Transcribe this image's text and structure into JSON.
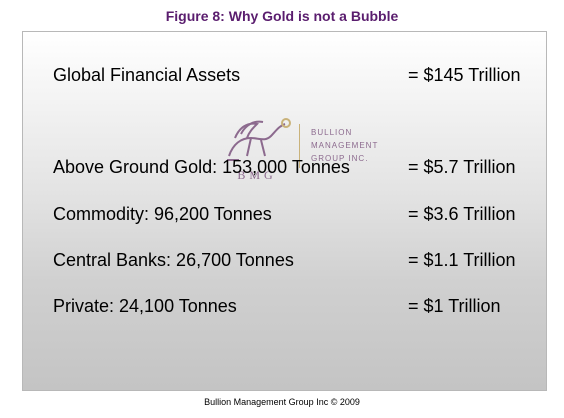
{
  "title": "Figure 8: Why Gold is not a Bubble",
  "colors": {
    "title": "#5a1d6e",
    "logo": "#8c6a8e",
    "logo_accent": "#c9b27a"
  },
  "rows": [
    {
      "label": "Global Financial Assets",
      "value": "= $145 Trillion"
    },
    {
      "label": "Above Ground Gold: 153,000 Tonnes",
      "value": "= $5.7 Trillion"
    },
    {
      "label": "Commodity: 96,200 Tonnes",
      "value": "= $3.6 Trillion"
    },
    {
      "label": "Central Banks: 26,700 Tonnes",
      "value": "= $1.1 Trillion"
    },
    {
      "label": "Private: 24,100 Tonnes",
      "value": "= $1 Trillion"
    }
  ],
  "logo": {
    "brand": "BMG",
    "name_lines": [
      "BULLION",
      "MANAGEMENT",
      "GROUP INC."
    ],
    "icon": "griffin-icon"
  },
  "footer": "Bullion Management Group Inc © 2009"
}
